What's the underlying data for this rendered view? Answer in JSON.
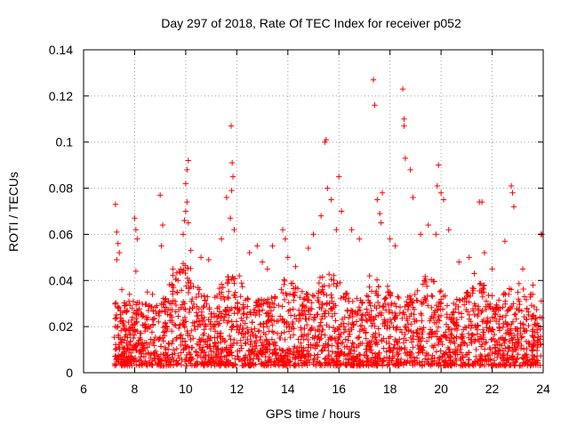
{
  "chart_data": {
    "type": "scatter",
    "title": "Day 297 of 2018, Rate Of TEC Index for receiver p052",
    "xlabel": "GPS time / hours",
    "ylabel": "ROTI / TECUs",
    "xlim": [
      6,
      24
    ],
    "ylim": [
      0,
      0.14
    ],
    "xticks": [
      6,
      8,
      10,
      12,
      14,
      16,
      18,
      20,
      22,
      24
    ],
    "yticks": [
      0,
      0.02,
      0.04,
      0.06,
      0.08,
      0.1,
      0.12,
      0.14
    ],
    "ytick_labels": [
      "0",
      "0.02",
      "0.04",
      "0.06",
      "0.08",
      "0.1",
      "0.12",
      "0.14"
    ],
    "grid": true,
    "marker": "+",
    "color": "#ff0000",
    "series": [
      {
        "name": "ROTI",
        "note": "dense cloud of thousands of points between 7.2 and 24 h mostly 0.003-0.035 TECU; notable peaks listed",
        "x": [
          7.25,
          7.3,
          7.35,
          7.4,
          7.3,
          7.5,
          7.6,
          7.8,
          8.0,
          8.05,
          8.1,
          8.05,
          8.5,
          8.7,
          9.0,
          9.1,
          9.05,
          9.5,
          9.7,
          9.9,
          9.95,
          10.0,
          10.05,
          10.1,
          10.05,
          10.0,
          10.1,
          10.2,
          10.6,
          10.9,
          11.4,
          11.6,
          11.75,
          11.8,
          11.85,
          11.82,
          11.78,
          11.9,
          12.1,
          12.5,
          12.8,
          13.0,
          13.2,
          13.4,
          13.8,
          13.9,
          14.0,
          14.3,
          14.8,
          15.0,
          15.3,
          15.45,
          15.5,
          15.55,
          15.7,
          15.9,
          16.0,
          16.1,
          16.5,
          16.8,
          17.2,
          17.35,
          17.4,
          17.5,
          17.6,
          17.65,
          17.7,
          18.0,
          18.2,
          18.5,
          18.55,
          18.6,
          18.55,
          18.8,
          18.9,
          19.2,
          19.5,
          19.8,
          19.9,
          19.85,
          20.0,
          20.1,
          20.3,
          20.7,
          21.1,
          21.3,
          21.5,
          21.6,
          21.7,
          22.0,
          22.5,
          22.75,
          22.8,
          22.85,
          23.2,
          23.6,
          23.9,
          23.95
        ],
        "y": [
          0.073,
          0.061,
          0.056,
          0.052,
          0.049,
          0.036,
          0.029,
          0.034,
          0.067,
          0.062,
          0.058,
          0.044,
          0.035,
          0.034,
          0.077,
          0.064,
          0.055,
          0.045,
          0.04,
          0.06,
          0.066,
          0.07,
          0.074,
          0.092,
          0.088,
          0.082,
          0.065,
          0.053,
          0.05,
          0.049,
          0.058,
          0.076,
          0.067,
          0.079,
          0.085,
          0.091,
          0.107,
          0.062,
          0.042,
          0.052,
          0.055,
          0.048,
          0.045,
          0.055,
          0.062,
          0.058,
          0.05,
          0.046,
          0.054,
          0.06,
          0.068,
          0.1,
          0.101,
          0.08,
          0.075,
          0.062,
          0.085,
          0.07,
          0.062,
          0.058,
          0.042,
          0.127,
          0.116,
          0.075,
          0.069,
          0.065,
          0.078,
          0.058,
          0.055,
          0.123,
          0.11,
          0.093,
          0.107,
          0.088,
          0.076,
          0.06,
          0.064,
          0.06,
          0.09,
          0.081,
          0.078,
          0.075,
          0.062,
          0.048,
          0.05,
          0.043,
          0.074,
          0.074,
          0.052,
          0.045,
          0.057,
          0.081,
          0.078,
          0.072,
          0.045,
          0.038,
          0.06,
          0.06
        ]
      }
    ]
  }
}
